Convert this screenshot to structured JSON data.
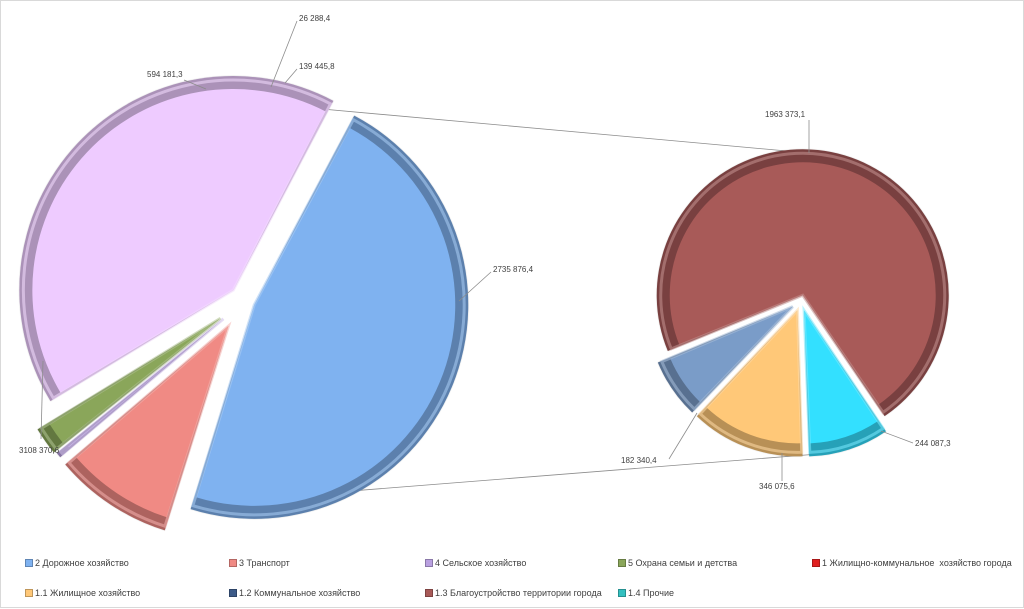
{
  "chart_data": {
    "type": "pie",
    "subtype": "pie-of-pie",
    "title": "",
    "main_pie": {
      "slices": [
        {
          "id": "roads",
          "label": "2 Дорожное хозяйство",
          "value": 3108370.6,
          "value_label": "3108 370,6",
          "color": "#7fb2f0"
        },
        {
          "id": "transport",
          "label": "3 Транспорт",
          "value": 594181.3,
          "value_label": "594 181,3",
          "color": "#f08a84"
        },
        {
          "id": "agri",
          "label": "4 Сельское хозяйство",
          "value": 26288.4,
          "value_label": "26 288,4",
          "color": "#b9a0e0"
        },
        {
          "id": "family",
          "label": "5 Охрана семьи и детства",
          "value": 139445.8,
          "value_label": "139 445,8",
          "color": "#8aa65a"
        },
        {
          "id": "housing_total",
          "label": "1 Жилищно-коммунальное  хозяйство города",
          "value": 2735876.4,
          "value_label": "2735 876,4",
          "color": "#eecbff"
        }
      ]
    },
    "secondary_pie": {
      "slices": [
        {
          "id": "h_housing",
          "label": "1.1 Жилищное хозяйство",
          "value": 346075.6,
          "value_label": "346 075,6",
          "color": "#ffc878"
        },
        {
          "id": "h_communal",
          "label": "1.2 Коммунальное хозяйство",
          "value": 182340.4,
          "value_label": "182 340,4",
          "color": "#7a9cc8"
        },
        {
          "id": "h_improve",
          "label": "1.3 Благоустройство территории города",
          "value": 1963373.1,
          "value_label": "1963 373,1",
          "color": "#a85a58"
        },
        {
          "id": "h_other",
          "label": "1.4 Прочие",
          "value": 244087.3,
          "value_label": "244 087,3",
          "color": "#33e0ff"
        }
      ]
    },
    "legend": {
      "placement": "bottom",
      "rows": [
        [
          {
            "label": "2 Дорожное хозяйство",
            "color": "#7fb2f0"
          },
          {
            "label": "3 Транспорт",
            "color": "#f08a84"
          },
          {
            "label": "4 Сельское хозяйство",
            "color": "#b9a0e0"
          },
          {
            "label": "5 Охрана семьи и детства",
            "color": "#8aa65a"
          },
          {
            "label": "1 Жилищно-коммунальное  хозяйство города",
            "color": "#e02020"
          }
        ],
        [
          {
            "label": "1.1 Жилищное хозяйство",
            "color": "#ffc878"
          },
          {
            "label": "1.2 Коммунальное хозяйство",
            "color": "#3c5a88"
          },
          {
            "label": "1.3 Благоустройство территории города",
            "color": "#a85a58"
          },
          {
            "label": "1.4 Прочие",
            "color": "#33c0c0"
          }
        ]
      ]
    }
  }
}
